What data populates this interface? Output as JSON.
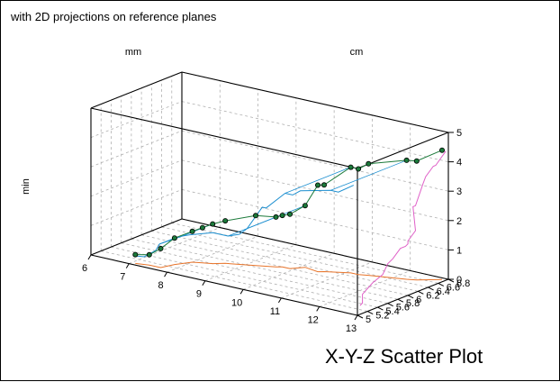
{
  "subtitle": "with 2D projections on reference planes",
  "caption": "X-Y-Z Scatter Plot",
  "chart_data": {
    "type": "scatter",
    "dimensions": "3d",
    "x": {
      "label": "mm",
      "range": [
        6,
        13
      ],
      "ticks": [
        "6",
        "7",
        "8",
        "9",
        "10",
        "11",
        "12",
        "13"
      ]
    },
    "y": {
      "label": "cm",
      "range": [
        5,
        6.8
      ],
      "ticks": [
        "5",
        "5.2",
        "5.4",
        "5.6",
        "5.8",
        "6",
        "6.2",
        "6.4",
        "6.6",
        "6.8"
      ]
    },
    "z": {
      "label": "min",
      "range": [
        0,
        5
      ],
      "ticks": [
        "0",
        "1",
        "2",
        "3",
        "4",
        "5"
      ]
    },
    "grid": true,
    "projections": [
      "x-z plane",
      "x-y plane",
      "y-z plane"
    ],
    "colors": {
      "points": "#1b7a3a",
      "step_line": "#1b7a3a",
      "xz_projection": "#1c8fd0",
      "xy_projection": "#e8742a",
      "yz_projection": "#e060c8"
    },
    "points": [
      {
        "x": 7.1,
        "y": 5.05,
        "z": 0.3
      },
      {
        "x": 7.4,
        "y": 5.1,
        "z": 0.35
      },
      {
        "x": 7.7,
        "y": 5.1,
        "z": 0.65
      },
      {
        "x": 7.8,
        "y": 5.3,
        "z": 0.9
      },
      {
        "x": 8.0,
        "y": 5.5,
        "z": 1.05
      },
      {
        "x": 8.2,
        "y": 5.55,
        "z": 1.2
      },
      {
        "x": 8.4,
        "y": 5.6,
        "z": 1.35
      },
      {
        "x": 8.6,
        "y": 5.7,
        "z": 1.45
      },
      {
        "x": 9.2,
        "y": 5.85,
        "z": 1.7
      },
      {
        "x": 9.6,
        "y": 5.95,
        "z": 1.7
      },
      {
        "x": 9.7,
        "y": 6.0,
        "z": 1.75
      },
      {
        "x": 9.9,
        "y": 6.0,
        "z": 1.85
      },
      {
        "x": 10.1,
        "y": 6.15,
        "z": 2.1
      },
      {
        "x": 10.5,
        "y": 6.1,
        "z": 2.95
      },
      {
        "x": 10.6,
        "y": 6.15,
        "z": 2.95
      },
      {
        "x": 11.1,
        "y": 6.3,
        "z": 3.6
      },
      {
        "x": 11.3,
        "y": 6.3,
        "z": 3.6
      },
      {
        "x": 11.5,
        "y": 6.35,
        "z": 3.8
      },
      {
        "x": 12.3,
        "y": 6.5,
        "z": 4.05
      },
      {
        "x": 12.5,
        "y": 6.55,
        "z": 4.05
      },
      {
        "x": 12.9,
        "y": 6.75,
        "z": 4.4
      }
    ]
  }
}
